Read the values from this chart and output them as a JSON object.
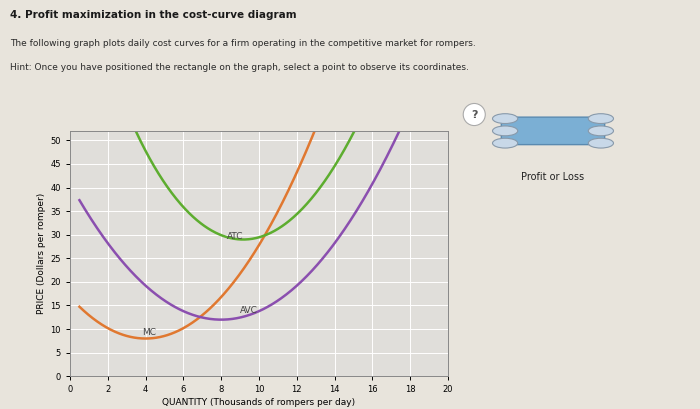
{
  "title": "4. Profit maximization in the cost-curve diagram",
  "subtitle": "The following graph plots daily cost curves for a firm operating in the competitive market for rompers.",
  "hint": "Hint: Once you have positioned the rectangle on the graph, select a point to observe its coordinates.",
  "xlabel": "QUANTITY (Thousands of rompers per day)",
  "ylabel": "PRICE (Dollars per romper)",
  "xlim": [
    0,
    20
  ],
  "ylim": [
    0,
    52
  ],
  "xticks": [
    0,
    2,
    4,
    6,
    8,
    10,
    12,
    14,
    16,
    18,
    20
  ],
  "yticks": [
    0,
    5,
    10,
    15,
    20,
    25,
    30,
    35,
    40,
    45,
    50
  ],
  "mc_color": "#E07830",
  "atc_color": "#5DAD2F",
  "avc_color": "#8B4FAF",
  "legend_label": "Profit or Loss",
  "legend_box_color": "#7BAFD4",
  "bg_color": "#E8E4DC",
  "plot_bg_color": "#E0DEDA"
}
